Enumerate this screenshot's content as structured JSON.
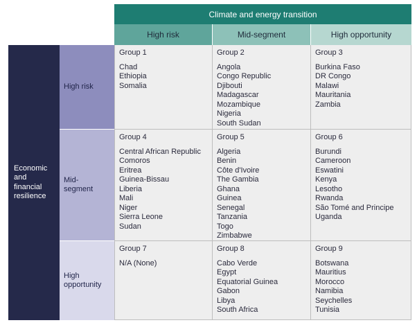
{
  "header": {
    "title": "Climate and energy transition",
    "columns": [
      "High risk",
      "Mid-segment",
      "High opportunity"
    ]
  },
  "rows": {
    "axis_label_lines": [
      "Economic",
      "and",
      "financial",
      "resilience"
    ],
    "labels": [
      [
        "High risk"
      ],
      [
        "Mid-",
        "segment"
      ],
      [
        "High",
        "opportunity"
      ]
    ]
  },
  "groups": [
    {
      "title": "Group 1",
      "countries": [
        "Chad",
        "Ethiopia",
        "Somalia"
      ]
    },
    {
      "title": "Group 2",
      "countries": [
        "Angola",
        "Congo Republic",
        "Djibouti",
        "Madagascar",
        "Mozambique",
        "Nigeria",
        "South Sudan"
      ]
    },
    {
      "title": "Group 3",
      "countries": [
        "Burkina Faso",
        "DR Congo",
        "Malawi",
        "Mauritania",
        "Zambia"
      ]
    },
    {
      "title": "Group 4",
      "countries": [
        "Central African Republic",
        "Comoros",
        "Eritrea",
        "Guinea-Bissau",
        "Liberia",
        "Mali",
        "Niger",
        "Sierra Leone",
        "Sudan"
      ]
    },
    {
      "title": "Group 5",
      "countries": [
        "Algeria",
        "Benin",
        "Côte d'Ivoire",
        "The Gambia",
        "Ghana",
        "Guinea",
        "Senegal",
        "Tanzania",
        "Togo",
        "Zimbabwe"
      ]
    },
    {
      "title": "Group 6",
      "countries": [
        "Burundi",
        "Cameroon",
        "Eswatini",
        "Kenya",
        "Lesotho",
        "Rwanda",
        "São Tomé and Principe",
        "Uganda"
      ]
    },
    {
      "title": "Group 7",
      "countries": [
        "N/A (None)"
      ]
    },
    {
      "title": "Group 8",
      "countries": [
        "Cabo Verde",
        "Egypt",
        "Equatorial Guinea",
        "Gabon",
        "Libya",
        "South Africa"
      ]
    },
    {
      "title": "Group 9",
      "countries": [
        "Botswana",
        "Mauritius",
        "Morocco",
        "Namibia",
        "Seychelles",
        "Tunisia"
      ]
    }
  ],
  "colors": {
    "title_bar": "#1e7d72",
    "col_high_risk": "#5fa59b",
    "col_mid_segment": "#8dc1b8",
    "col_high_opportunity": "#b6d7d0",
    "row_axis": "#25294a",
    "row_high_risk": "#8d8dbd",
    "row_mid_segment": "#b4b4d5",
    "row_high_opportunity": "#d9d9eb",
    "cell_background": "#eeeeee"
  }
}
